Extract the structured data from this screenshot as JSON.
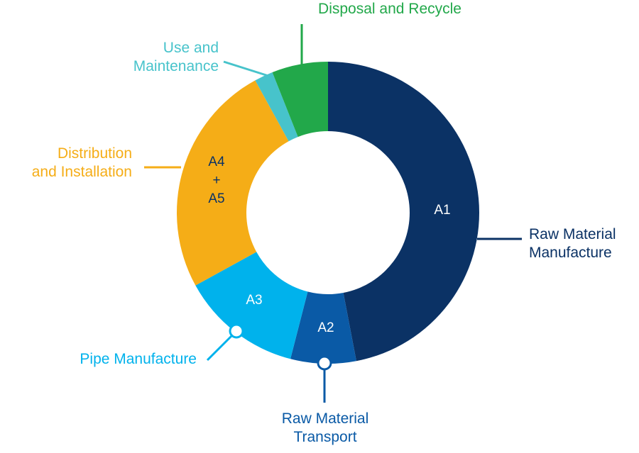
{
  "chart_data": {
    "type": "donut",
    "categories": [
      "Raw Material\nManufacture",
      "Raw Material\nTransport",
      "Pipe Manufacture",
      "Distribution\nand Installation",
      "Use and\nMaintenance",
      "Disposal and Recycle"
    ],
    "values": [
      47,
      7,
      13,
      25,
      2,
      6
    ],
    "colors": [
      "#0b3265",
      "#0a5aa6",
      "#00b2ec",
      "#f5ad17",
      "#47c3cb",
      "#22a84a"
    ],
    "segment_labels": [
      "A1",
      "A2",
      "A3",
      "A4\n+\nA5",
      null,
      null
    ]
  }
}
